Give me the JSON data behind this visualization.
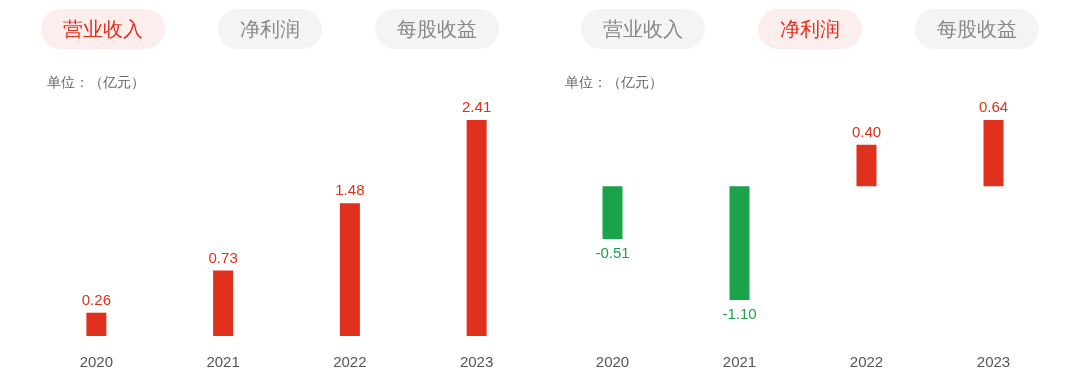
{
  "chart_data": [
    {
      "type": "bar",
      "annotations": [
        "营业收入",
        "净利润",
        "每股收益"
      ],
      "ylabel": "单位：（亿元）",
      "categories": [
        "2020",
        "2021",
        "2022",
        "2023"
      ],
      "values": [
        0.26,
        0.73,
        1.48,
        2.41
      ],
      "colors": [
        "#e0301e",
        "#e0301e",
        "#e0301e",
        "#e0301e"
      ],
      "value_labels": [
        "0.26",
        "0.73",
        "1.48",
        "2.41"
      ]
    },
    {
      "type": "bar",
      "annotations": [
        "营业收入",
        "净利润",
        "每股收益"
      ],
      "ylabel": "单位：（亿元）",
      "categories": [
        "2020",
        "2021",
        "2022",
        "2023"
      ],
      "values": [
        -0.51,
        -1.1,
        0.4,
        0.64
      ],
      "colors": [
        "#1aa34a",
        "#1aa34a",
        "#e0301e",
        "#e0301e"
      ],
      "value_labels": [
        "-0.51",
        "-1.10",
        "0.40",
        "0.64"
      ]
    }
  ]
}
